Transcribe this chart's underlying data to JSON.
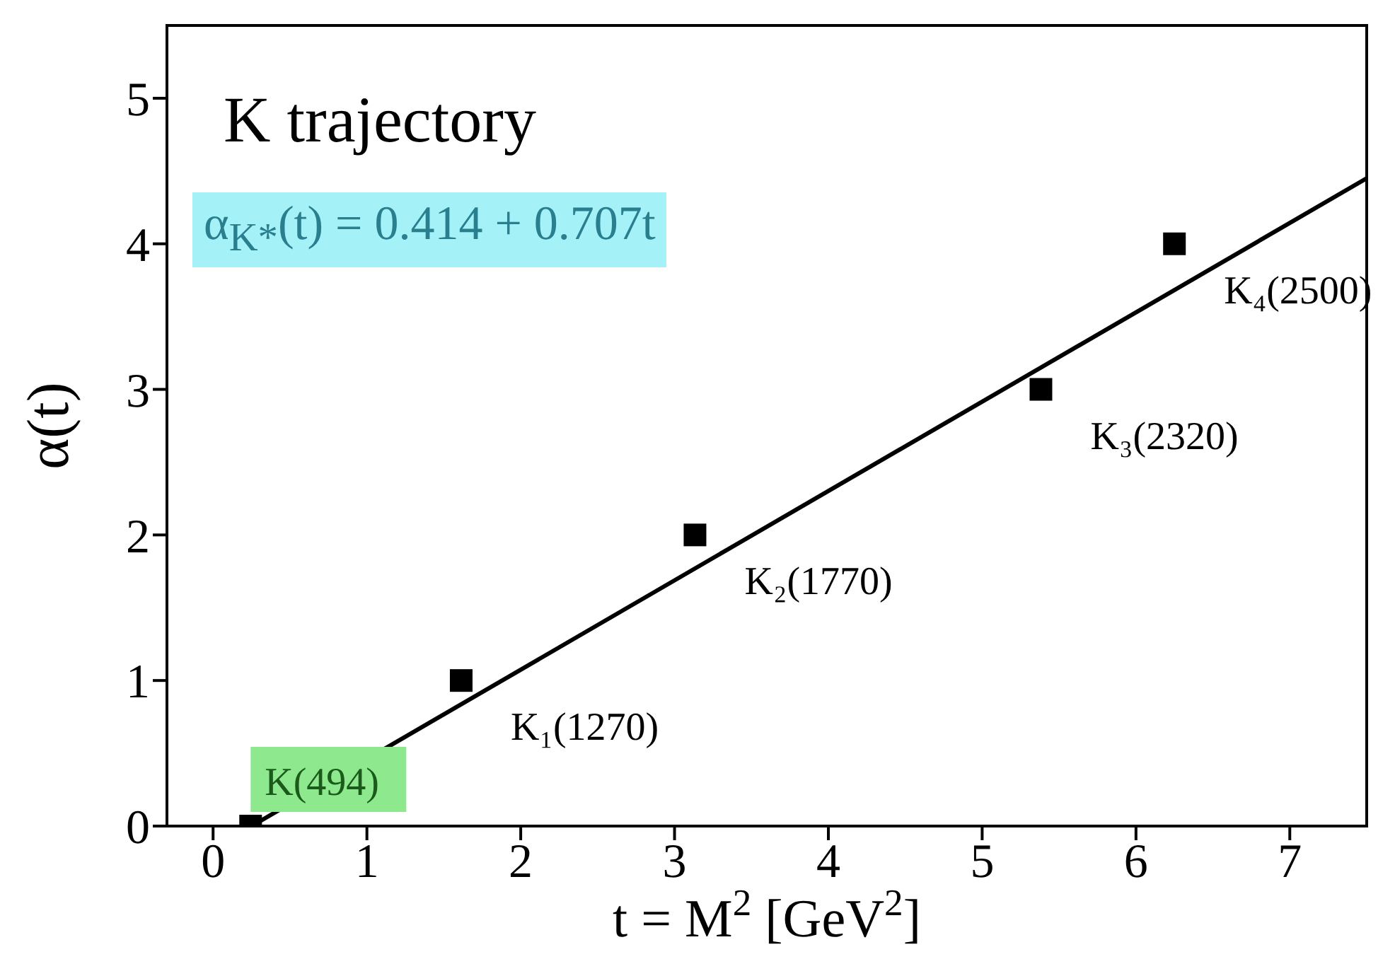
{
  "chart_data": {
    "type": "scatter",
    "title": "K trajectory",
    "xlabel": "t = M$^{2}$ [GeV$^{2}$]",
    "ylabel": "α(t)",
    "series": [
      {
        "color": "#000000",
        "marker": "square",
        "x": [
          0.244,
          1.613,
          3.133,
          5.382,
          6.25
        ],
        "values": [
          0,
          1,
          2,
          3,
          4
        ]
      },
      {
        "type": "line",
        "color": "#000000",
        "marker": "none",
        "x": [
          0.25,
          7.5
        ],
        "values": [
          0,
          4.45
        ]
      }
    ],
    "xlim": [
      -0.3,
      7.5
    ],
    "xticks": [
      0,
      1,
      2,
      3,
      4,
      5,
      6,
      7
    ],
    "ylim": [
      0,
      5.5
    ],
    "yticks": [
      0,
      1,
      2,
      3,
      4,
      5
    ],
    "grid": false,
    "legend": false,
    "annotations": [
      "α$_{K*}$(t) = 0.414 + 0.707t",
      {
        "text": "K(494)",
        "x": 0.244,
        "y": 0
      },
      {
        "text": "K₁(1270)",
        "x": 1.613,
        "y": 1
      },
      {
        "text": "K₂(1770)",
        "x": 3.133,
        "y": 2
      },
      {
        "text": "K₃(2320)",
        "x": 5.382,
        "y": 3
      },
      {
        "text": "K₄(2500)",
        "x": 6.25,
        "y": 4
      }
    ]
  }
}
